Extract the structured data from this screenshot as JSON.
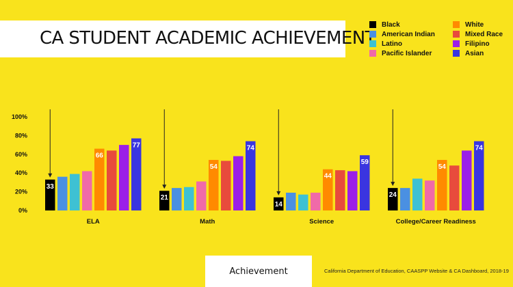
{
  "title": "CA STUDENT ACADEMIC ACHIEVEMENT",
  "footer_label": "Achievement",
  "source": "California Department of Education, CAASPP Website & CA Dashboard, 2018-19",
  "chart_data": {
    "type": "bar",
    "categories": [
      "ELA",
      "Math",
      "Science",
      "College/Career Readiness"
    ],
    "ylim": [
      0,
      100
    ],
    "yticks": [
      "0%",
      "20%",
      "40%",
      "60%",
      "80%",
      "100%"
    ],
    "ytick_values": [
      0,
      20,
      40,
      60,
      80,
      100
    ],
    "grid": false,
    "legend_position": "top-right",
    "series": [
      {
        "name": "Black",
        "color": "#000000",
        "values": [
          33,
          21,
          14,
          24
        ],
        "labeled": true
      },
      {
        "name": "American Indian",
        "color": "#4a90e2",
        "values": [
          36,
          24,
          19,
          24
        ],
        "labeled": false
      },
      {
        "name": "Latino",
        "color": "#3ec1d3",
        "values": [
          39,
          25,
          17,
          34
        ],
        "labeled": false
      },
      {
        "name": "Pacific Islander",
        "color": "#f06aa8",
        "values": [
          42,
          31,
          19,
          32
        ],
        "labeled": false
      },
      {
        "name": "White",
        "color": "#ff8a00",
        "values": [
          66,
          54,
          44,
          54
        ],
        "labeled": true
      },
      {
        "name": "Mixed Race",
        "color": "#e84b3c",
        "values": [
          64,
          53,
          43,
          48
        ],
        "labeled": false
      },
      {
        "name": "Filipino",
        "color": "#9b1fe8",
        "values": [
          70,
          58,
          42,
          64
        ],
        "labeled": false
      },
      {
        "name": "Asian",
        "color": "#3a35e0",
        "values": [
          77,
          74,
          59,
          74
        ],
        "labeled": true
      }
    ]
  }
}
